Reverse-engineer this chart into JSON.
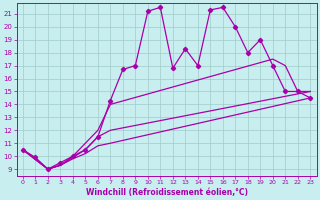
{
  "xlabel": "Windchill (Refroidissement éolien,°C)",
  "xlim": [
    -0.5,
    23.5
  ],
  "ylim": [
    8.5,
    21.8
  ],
  "yticks": [
    9,
    10,
    11,
    12,
    13,
    14,
    15,
    16,
    17,
    18,
    19,
    20,
    21
  ],
  "xticks": [
    0,
    1,
    2,
    3,
    4,
    5,
    6,
    7,
    8,
    9,
    10,
    11,
    12,
    13,
    14,
    15,
    16,
    17,
    18,
    19,
    20,
    21,
    22,
    23
  ],
  "bg_color": "#c8eef0",
  "line_color": "#aa00aa",
  "grid_color": "#a0ccc8",
  "series_markers": {
    "x": [
      0,
      1,
      2,
      3,
      4,
      5,
      6,
      7,
      8,
      9,
      10,
      11,
      12,
      13,
      14,
      15,
      16,
      17,
      18,
      19,
      20,
      21,
      22,
      23
    ],
    "y": [
      10.5,
      9.9,
      9.0,
      9.5,
      10.0,
      10.5,
      11.5,
      14.3,
      16.7,
      17.0,
      21.2,
      21.5,
      16.8,
      18.3,
      17.0,
      21.3,
      21.5,
      20.0,
      18.0,
      19.0,
      17.0,
      15.0,
      15.0,
      14.5
    ]
  },
  "series_lines": [
    {
      "x": [
        0,
        2,
        3,
        4,
        5,
        6,
        7,
        23
      ],
      "y": [
        10.5,
        9.0,
        9.3,
        9.8,
        10.2,
        10.8,
        11.0,
        14.5
      ]
    },
    {
      "x": [
        0,
        2,
        3,
        4,
        5,
        6,
        7,
        23
      ],
      "y": [
        10.5,
        9.0,
        9.3,
        9.9,
        10.5,
        11.5,
        12.0,
        15.0
      ]
    },
    {
      "x": [
        0,
        2,
        3,
        4,
        5,
        6,
        7,
        20,
        21,
        22,
        23
      ],
      "y": [
        10.5,
        9.0,
        9.3,
        10.0,
        11.0,
        12.0,
        14.0,
        17.5,
        17.0,
        15.0,
        15.0
      ]
    }
  ]
}
